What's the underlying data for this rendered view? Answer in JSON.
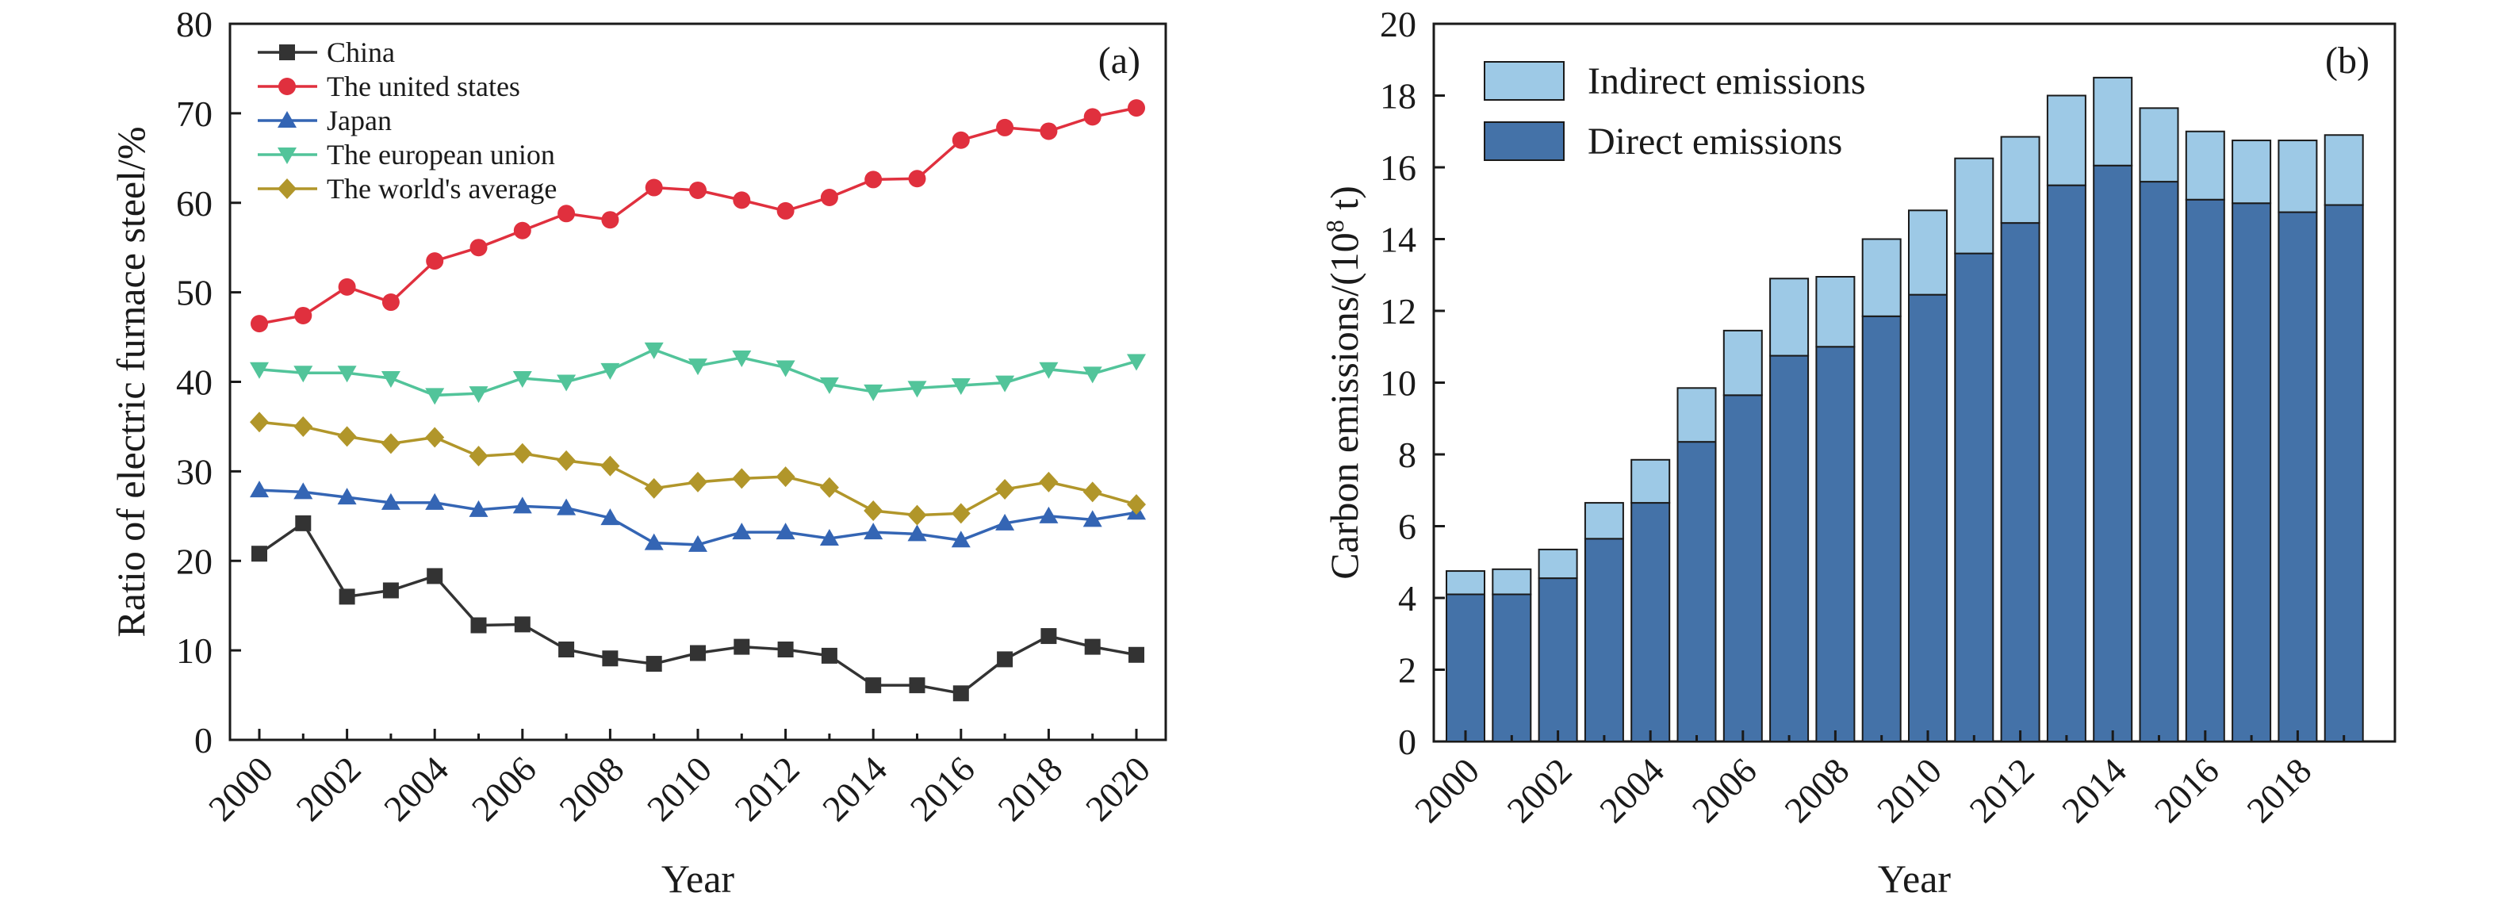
{
  "chart_data": [
    {
      "type": "line",
      "panel_label": "(a)",
      "xlabel": "Year",
      "ylabel": "Ratio of electric furnace steel/%",
      "ylim": [
        0,
        80
      ],
      "yticks": [
        0,
        10,
        20,
        30,
        40,
        50,
        60,
        70,
        80
      ],
      "xlim": [
        2000,
        2020
      ],
      "xticks": [
        "2000",
        "2002",
        "2004",
        "2006",
        "2008",
        "2010",
        "2012",
        "2014",
        "2016",
        "2018",
        "2020"
      ],
      "legend_position": "top-left",
      "x": [
        2000,
        2001,
        2002,
        2003,
        2004,
        2005,
        2006,
        2007,
        2008,
        2009,
        2010,
        2011,
        2012,
        2013,
        2014,
        2015,
        2016,
        2017,
        2018,
        2019,
        2020
      ],
      "series": [
        {
          "name": "China",
          "color": "#333333",
          "marker": "square",
          "values": [
            20.8,
            24.2,
            16.0,
            16.7,
            18.3,
            12.8,
            12.9,
            10.1,
            9.1,
            8.5,
            9.7,
            10.4,
            10.1,
            9.4,
            6.1,
            6.1,
            5.2,
            9.0,
            11.6,
            10.4,
            9.5
          ]
        },
        {
          "name": "The united states",
          "color": "#e0303e",
          "marker": "circle",
          "values": [
            46.5,
            47.4,
            50.6,
            48.9,
            53.5,
            55.0,
            56.9,
            58.8,
            58.1,
            61.7,
            61.4,
            60.3,
            59.1,
            60.6,
            62.6,
            62.7,
            67.0,
            68.4,
            68.0,
            69.6,
            70.6
          ]
        },
        {
          "name": "Japan",
          "color": "#3465b4",
          "marker": "triangle-up",
          "values": [
            27.9,
            27.7,
            27.1,
            26.5,
            26.5,
            25.7,
            26.1,
            25.9,
            24.8,
            22.0,
            21.8,
            23.2,
            23.2,
            22.5,
            23.2,
            23.0,
            22.3,
            24.2,
            25.0,
            24.6,
            25.4
          ]
        },
        {
          "name": "The european union",
          "color": "#52c49a",
          "marker": "triangle-down",
          "values": [
            41.4,
            41.0,
            41.0,
            40.4,
            38.5,
            38.7,
            40.4,
            40.0,
            41.3,
            43.6,
            41.8,
            42.7,
            41.6,
            39.7,
            38.9,
            39.3,
            39.6,
            39.9,
            41.4,
            40.9,
            42.3
          ]
        },
        {
          "name": "The world's average",
          "color": "#b1962a",
          "marker": "diamond",
          "values": [
            35.5,
            35.0,
            33.9,
            33.1,
            33.8,
            31.7,
            32.0,
            31.2,
            30.6,
            28.1,
            28.8,
            29.2,
            29.4,
            28.2,
            25.6,
            25.1,
            25.3,
            28.0,
            28.8,
            27.7,
            26.3
          ]
        }
      ]
    },
    {
      "type": "bar",
      "stacked": true,
      "panel_label": "(b)",
      "xlabel": "Year",
      "ylabel": "Carbon emissions/(10",
      "ylabel_sup": "8",
      "ylabel_tail": " t)",
      "ylim": [
        0,
        20
      ],
      "yticks": [
        0,
        2,
        4,
        6,
        8,
        10,
        12,
        14,
        16,
        18,
        20
      ],
      "xticks": [
        "2000",
        "2002",
        "2004",
        "2006",
        "2008",
        "2010",
        "2012",
        "2014",
        "2016",
        "2018"
      ],
      "legend_position": "top-left",
      "categories": [
        "2000",
        "2001",
        "2002",
        "2003",
        "2004",
        "2005",
        "2006",
        "2007",
        "2008",
        "2009",
        "2010",
        "2011",
        "2012",
        "2013",
        "2014",
        "2015",
        "2016",
        "2017",
        "2018",
        "2019"
      ],
      "series": [
        {
          "name": "Direct emissions",
          "color": "#4472a8",
          "values": [
            4.1,
            4.1,
            4.55,
            5.65,
            6.65,
            8.35,
            9.65,
            10.75,
            11.0,
            11.85,
            12.45,
            13.6,
            14.45,
            15.5,
            16.05,
            15.6,
            15.1,
            15.0,
            14.75,
            14.95
          ]
        },
        {
          "name": "Indirect emissions",
          "color": "#9dc9e6",
          "values": [
            0.65,
            0.7,
            0.8,
            1.0,
            1.2,
            1.5,
            1.8,
            2.15,
            1.95,
            2.15,
            2.35,
            2.65,
            2.4,
            2.5,
            2.45,
            2.05,
            1.9,
            1.75,
            2.0,
            1.95
          ]
        }
      ]
    }
  ]
}
